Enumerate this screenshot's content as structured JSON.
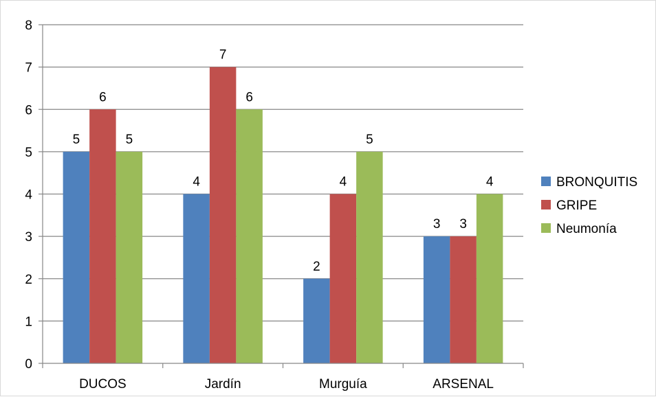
{
  "chart_data": {
    "type": "bar",
    "categories": [
      "DUCOS",
      "Jardín",
      "Murguía",
      "ARSENAL"
    ],
    "series": [
      {
        "name": "BRONQUITIS",
        "values": [
          5,
          4,
          2,
          3
        ],
        "color": "#4f81bd"
      },
      {
        "name": "GRIPE",
        "values": [
          6,
          7,
          4,
          3
        ],
        "color": "#c0504d"
      },
      {
        "name": "Neumonía",
        "values": [
          5,
          6,
          5,
          4
        ],
        "color": "#9bbb59"
      }
    ],
    "title": "",
    "xlabel": "",
    "ylabel": "",
    "ylim": [
      0,
      8
    ],
    "yticks": [
      "0",
      "1",
      "2",
      "3",
      "4",
      "5",
      "6",
      "7",
      "8"
    ],
    "grid": true,
    "legend_position": "right",
    "data_labels": true
  }
}
